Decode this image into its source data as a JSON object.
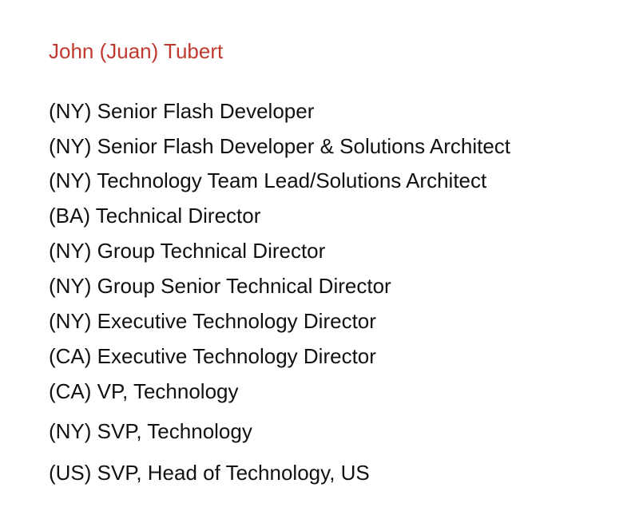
{
  "person": {
    "name": "John (Juan) Tubert",
    "name_color": "#c0392f"
  },
  "roles": [
    "(NY) Senior Flash Developer",
    "(NY) Senior Flash Developer & Solutions Architect",
    "(NY) Technology Team Lead/Solutions Architect",
    "(BA) Technical Director",
    "(NY) Group Technical Director",
    "(NY) Group Senior Technical Director",
    "(NY) Executive Technology Director",
    "(CA) Executive Technology Director",
    "(CA) VP, Technology",
    "(NY) SVP, Technology",
    "(US) SVP, Head of Technology, US"
  ]
}
